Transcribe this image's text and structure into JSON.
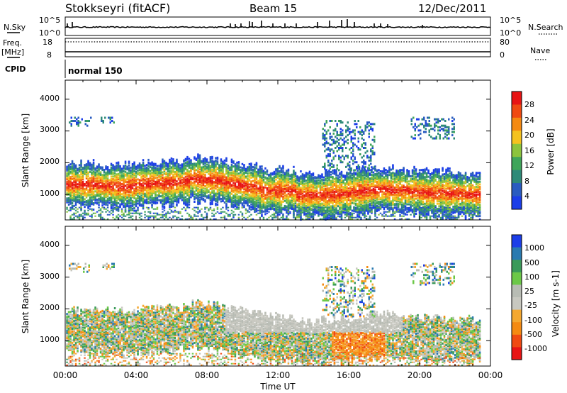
{
  "header": {
    "station": "Stokkseyri (fitACF)",
    "beam": "Beam 15",
    "date": "12/Dec/2011"
  },
  "nsky_panel": {
    "left_label": "N.Sky",
    "right_label": "N.Search",
    "ticks": [
      "10^5",
      "10^0"
    ],
    "right_ticks": [
      "10^5",
      "10^0"
    ]
  },
  "freq_panel": {
    "left_label_1": "Freq.",
    "left_label_2": "[MHz]",
    "left_ticks": [
      "18",
      "8"
    ],
    "right_label": "Nave",
    "right_ticks": [
      "80",
      "0"
    ]
  },
  "cpid_panel": {
    "label": "CPID",
    "value": "normal 150"
  },
  "x_axis": {
    "label": "Time UT",
    "ticks": [
      "00:00",
      "04:00",
      "08:00",
      "12:00",
      "16:00",
      "20:00",
      "00:00"
    ]
  },
  "colors": {
    "power": [
      "#1c3ee8",
      "#2a5cc0",
      "#2e8a78",
      "#3fa55a",
      "#8cc43c",
      "#f5c21e",
      "#f58a12",
      "#f04a12",
      "#e81414"
    ],
    "velocity": [
      "#e81414",
      "#f04a12",
      "#f58a12",
      "#f5a830",
      "#c8c8c0",
      "#b8bcb4",
      "#6cc848",
      "#3a9a5a",
      "#2a7ab0",
      "#1c3ee8"
    ]
  },
  "chart_data": [
    {
      "type": "heatmap",
      "name": "power",
      "ylabel": "Slant Range [km]",
      "yticks": [
        "1000",
        "2000",
        "3000",
        "4000"
      ],
      "ylim": [
        200,
        4600
      ],
      "xlim_hours": [
        0,
        24
      ],
      "colorbar_label": "Power [dB]",
      "colorbar_ticks": [
        "4",
        "8",
        "12",
        "16",
        "20",
        "24",
        "28"
      ],
      "colorbar_range": [
        0,
        30
      ]
    },
    {
      "type": "heatmap",
      "name": "velocity",
      "ylabel": "Slant Range [km]",
      "yticks": [
        "1000",
        "2000",
        "3000",
        "4000"
      ],
      "ylim": [
        200,
        4600
      ],
      "xlim_hours": [
        0,
        24
      ],
      "colorbar_label": "Velocity [m s-1]",
      "colorbar_ticks": [
        "1000",
        "500",
        "100",
        "25",
        "-25",
        "-100",
        "-500",
        "-1000"
      ]
    }
  ]
}
